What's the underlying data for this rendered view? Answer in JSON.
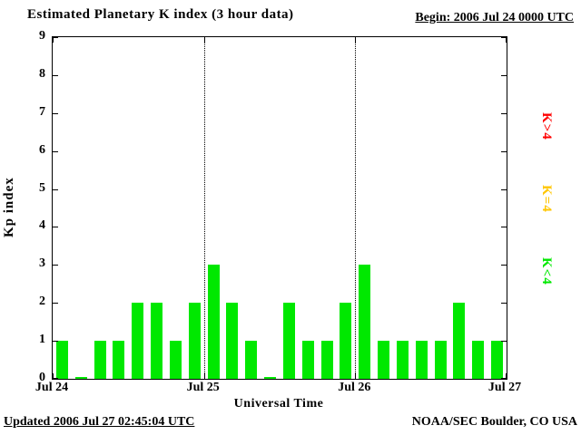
{
  "header": {
    "title": "Estimated Planetary K index (3 hour data)",
    "begin_label": "Begin: 2006 Jul 24 0000 UTC"
  },
  "footer": {
    "updated": "Updated 2006 Jul 27 02:45:04 UTC",
    "credit": "NOAA/SEC Boulder, CO USA"
  },
  "chart_data": {
    "type": "bar",
    "title": "Estimated Planetary K index (3 hour data)",
    "xlabel": "Universal Time",
    "ylabel": "Kp index",
    "ylim": [
      0,
      9
    ],
    "yticks": [
      0,
      1,
      2,
      3,
      4,
      5,
      6,
      7,
      8,
      9
    ],
    "x_tick_labels": [
      "Jul 24",
      "Jul 25",
      "Jul 26",
      "Jul 27"
    ],
    "values": [
      1,
      0,
      1,
      1,
      2,
      2,
      1,
      2,
      3,
      2,
      1,
      0,
      2,
      1,
      1,
      2,
      3,
      1,
      1,
      1,
      1,
      2,
      1,
      1
    ],
    "bar_color": "#00e800",
    "grid": "vertical dotted lines at day boundaries",
    "legend_position": "right, rotated",
    "legend": [
      {
        "label": "K>4",
        "color": "#ff0000"
      },
      {
        "label": "K=4",
        "color": "#ffc600"
      },
      {
        "label": "K<4",
        "color": "#00e800"
      }
    ]
  }
}
